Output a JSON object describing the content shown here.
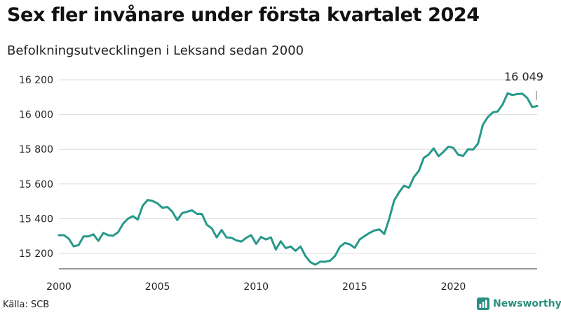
{
  "header": {
    "title": "Sex fler invånare under första kvartalet 2024",
    "subtitle": "Befolkningsutvecklingen i Leksand sedan 2000"
  },
  "footer": {
    "source": "Källa: SCB",
    "brand": "Newsworthy"
  },
  "colors": {
    "line": "#26998a",
    "brand": "#2a8f80",
    "grid": "#dcdcdc"
  },
  "chart_data": {
    "type": "line",
    "title": "Sex fler invånare under första kvartalet 2024",
    "subtitle": "Befolkningsutvecklingen i Leksand sedan 2000",
    "xlabel": "",
    "ylabel": "",
    "x_ticks": [
      2000,
      2005,
      2010,
      2015,
      2020
    ],
    "x_tick_labels": [
      "2000",
      "2005",
      "2010",
      "2015",
      "2020"
    ],
    "y_ticks": [
      15200,
      15400,
      15600,
      15800,
      16000,
      16200
    ],
    "y_tick_labels": [
      "15 200",
      "15 400",
      "15 600",
      "15 800",
      "16 000",
      "16 200"
    ],
    "xlim": [
      2000,
      2024.25
    ],
    "ylim": [
      15130,
      16230
    ],
    "grid": true,
    "annotation": {
      "text": "16 049",
      "x": 2024.0,
      "y": 16049
    },
    "series": [
      {
        "values": [
          [
            2000.0,
            15305
          ],
          [
            2000.25,
            15305
          ],
          [
            2000.5,
            15285
          ],
          [
            2000.75,
            15240
          ],
          [
            2001.0,
            15248
          ],
          [
            2001.25,
            15298
          ],
          [
            2001.5,
            15298
          ],
          [
            2001.75,
            15310
          ],
          [
            2002.0,
            15272
          ],
          [
            2002.25,
            15318
          ],
          [
            2002.5,
            15305
          ],
          [
            2002.75,
            15302
          ],
          [
            2003.0,
            15322
          ],
          [
            2003.25,
            15370
          ],
          [
            2003.5,
            15400
          ],
          [
            2003.75,
            15415
          ],
          [
            2004.0,
            15395
          ],
          [
            2004.25,
            15475
          ],
          [
            2004.5,
            15508
          ],
          [
            2004.75,
            15502
          ],
          [
            2005.0,
            15488
          ],
          [
            2005.25,
            15462
          ],
          [
            2005.5,
            15468
          ],
          [
            2005.75,
            15440
          ],
          [
            2006.0,
            15392
          ],
          [
            2006.25,
            15432
          ],
          [
            2006.5,
            15440
          ],
          [
            2006.75,
            15448
          ],
          [
            2007.0,
            15428
          ],
          [
            2007.25,
            15428
          ],
          [
            2007.5,
            15365
          ],
          [
            2007.75,
            15345
          ],
          [
            2008.0,
            15292
          ],
          [
            2008.25,
            15335
          ],
          [
            2008.5,
            15292
          ],
          [
            2008.75,
            15290
          ],
          [
            2009.0,
            15275
          ],
          [
            2009.25,
            15268
          ],
          [
            2009.5,
            15290
          ],
          [
            2009.75,
            15305
          ],
          [
            2010.0,
            15255
          ],
          [
            2010.25,
            15295
          ],
          [
            2010.5,
            15280
          ],
          [
            2010.75,
            15292
          ],
          [
            2011.0,
            15222
          ],
          [
            2011.25,
            15270
          ],
          [
            2011.5,
            15230
          ],
          [
            2011.75,
            15240
          ],
          [
            2012.0,
            15215
          ],
          [
            2012.25,
            15240
          ],
          [
            2012.5,
            15185
          ],
          [
            2012.75,
            15150
          ],
          [
            2013.0,
            15135
          ],
          [
            2013.25,
            15152
          ],
          [
            2013.5,
            15152
          ],
          [
            2013.75,
            15158
          ],
          [
            2014.0,
            15185
          ],
          [
            2014.25,
            15238
          ],
          [
            2014.5,
            15260
          ],
          [
            2014.75,
            15252
          ],
          [
            2015.0,
            15232
          ],
          [
            2015.25,
            15280
          ],
          [
            2015.5,
            15300
          ],
          [
            2015.75,
            15318
          ],
          [
            2016.0,
            15332
          ],
          [
            2016.25,
            15338
          ],
          [
            2016.5,
            15312
          ],
          [
            2016.75,
            15400
          ],
          [
            2017.0,
            15505
          ],
          [
            2017.25,
            15552
          ],
          [
            2017.5,
            15590
          ],
          [
            2017.75,
            15578
          ],
          [
            2018.0,
            15640
          ],
          [
            2018.25,
            15675
          ],
          [
            2018.5,
            15750
          ],
          [
            2018.75,
            15770
          ],
          [
            2019.0,
            15805
          ],
          [
            2019.25,
            15760
          ],
          [
            2019.5,
            15785
          ],
          [
            2019.75,
            15815
          ],
          [
            2020.0,
            15808
          ],
          [
            2020.25,
            15768
          ],
          [
            2020.5,
            15762
          ],
          [
            2020.75,
            15800
          ],
          [
            2021.0,
            15798
          ],
          [
            2021.25,
            15832
          ],
          [
            2021.5,
            15942
          ],
          [
            2021.75,
            15985
          ],
          [
            2022.0,
            16012
          ],
          [
            2022.25,
            16018
          ],
          [
            2022.5,
            16058
          ],
          [
            2022.75,
            16122
          ],
          [
            2023.0,
            16112
          ],
          [
            2023.25,
            16118
          ],
          [
            2023.5,
            16120
          ],
          [
            2023.75,
            16095
          ],
          [
            2024.0,
            16043
          ],
          [
            2024.25,
            16049
          ]
        ]
      }
    ]
  }
}
